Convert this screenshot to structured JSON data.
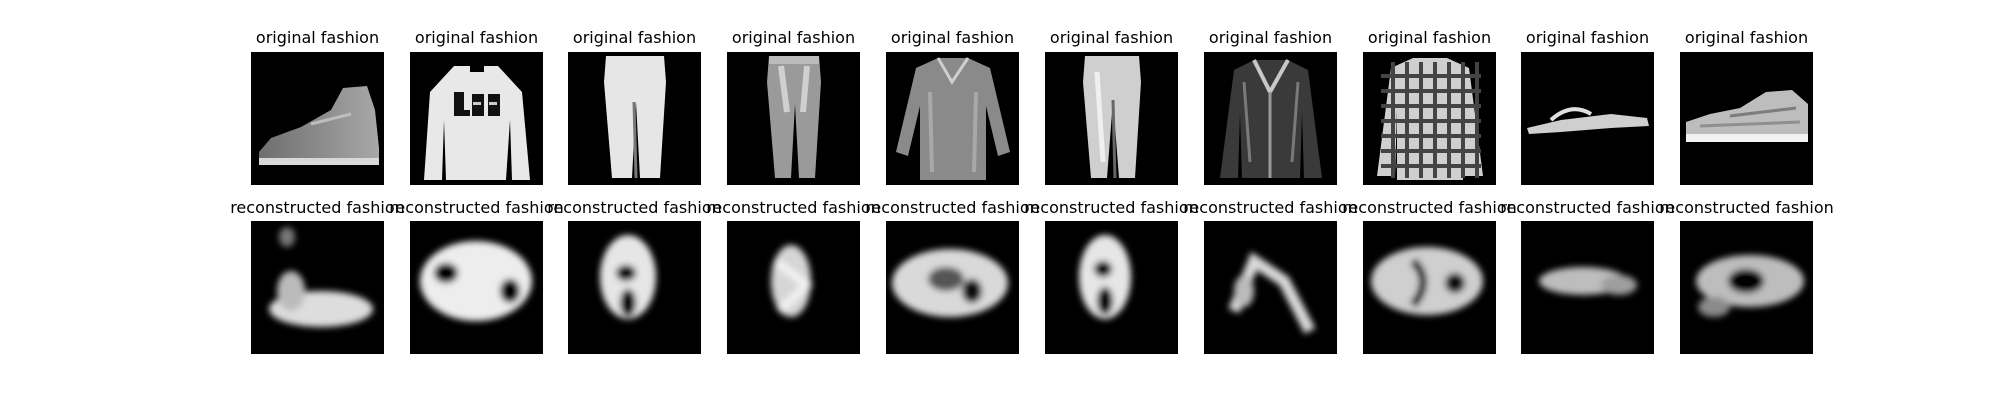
{
  "figure": {
    "rows": [
      {
        "row": "original",
        "panels": [
          {
            "title": "original fashion",
            "depicts": "ankle-boot"
          },
          {
            "title": "original fashion",
            "depicts": "pullover"
          },
          {
            "title": "original fashion",
            "depicts": "trouser"
          },
          {
            "title": "original fashion",
            "depicts": "trouser"
          },
          {
            "title": "original fashion",
            "depicts": "shirt"
          },
          {
            "title": "original fashion",
            "depicts": "trouser"
          },
          {
            "title": "original fashion",
            "depicts": "coat"
          },
          {
            "title": "original fashion",
            "depicts": "shirt"
          },
          {
            "title": "original fashion",
            "depicts": "sandal"
          },
          {
            "title": "original fashion",
            "depicts": "sneaker"
          }
        ]
      },
      {
        "row": "reconstructed",
        "panels": [
          {
            "title": "reconstructed fashion",
            "depicts": "blurry-blob"
          },
          {
            "title": "reconstructed fashion",
            "depicts": "blurry-blob"
          },
          {
            "title": "reconstructed fashion",
            "depicts": "blurry-blob"
          },
          {
            "title": "reconstructed fashion",
            "depicts": "blurry-blob"
          },
          {
            "title": "reconstructed fashion",
            "depicts": "blurry-blob"
          },
          {
            "title": "reconstructed fashion",
            "depicts": "blurry-blob"
          },
          {
            "title": "reconstructed fashion",
            "depicts": "blurry-blob"
          },
          {
            "title": "reconstructed fashion",
            "depicts": "blurry-blob"
          },
          {
            "title": "reconstructed fashion",
            "depicts": "blurry-blob"
          },
          {
            "title": "reconstructed fashion",
            "depicts": "blurry-blob"
          }
        ]
      }
    ],
    "colors": {
      "background": "#ffffff",
      "panel_background": "#000000",
      "title_text": "#000000"
    }
  }
}
